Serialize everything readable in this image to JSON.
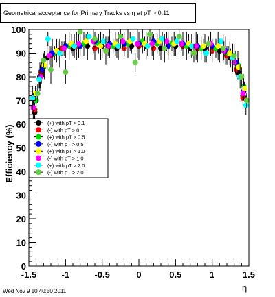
{
  "chart_data": {
    "type": "scatter",
    "title": "Geometrical acceptance for Primary Tracks vs   η at pT > 0.11",
    "xlabel": "η",
    "ylabel": "Efficiency (%)",
    "xlim": [
      -1.5,
      1.5
    ],
    "ylim": [
      0,
      100
    ],
    "xticks": [
      "-1.5",
      "-1",
      "-0.5",
      "0",
      "0.5",
      "1",
      "1.5"
    ],
    "yticks": [
      "0",
      "10",
      "20",
      "30",
      "40",
      "50",
      "60",
      "70",
      "80",
      "90",
      "100"
    ],
    "grid": false,
    "legend_position": "left-middle",
    "series": [
      {
        "name": "(+) with pT > 0.1",
        "color": "#000000",
        "points": [
          [
            -1.42,
            65
          ],
          [
            -1.35,
            80
          ],
          [
            -1.25,
            88
          ],
          [
            -1.1,
            91
          ],
          [
            -0.9,
            92
          ],
          [
            -0.7,
            93
          ],
          [
            -0.5,
            93
          ],
          [
            -0.3,
            92
          ],
          [
            -0.1,
            93
          ],
          [
            0.1,
            93
          ],
          [
            0.3,
            92
          ],
          [
            0.5,
            93
          ],
          [
            0.7,
            92
          ],
          [
            0.9,
            92
          ],
          [
            1.1,
            91
          ],
          [
            1.25,
            88
          ],
          [
            1.35,
            82
          ],
          [
            1.42,
            72
          ]
        ]
      },
      {
        "name": "(-) with pT > 0.1",
        "color": "#ff0000",
        "points": [
          [
            -1.42,
            66
          ],
          [
            -1.33,
            82
          ],
          [
            -1.2,
            89
          ],
          [
            -1.05,
            92
          ],
          [
            -0.85,
            93
          ],
          [
            -0.6,
            92
          ],
          [
            -0.4,
            93
          ],
          [
            -0.2,
            92
          ],
          [
            0.0,
            93
          ],
          [
            0.2,
            92
          ],
          [
            0.4,
            93
          ],
          [
            0.6,
            93
          ],
          [
            0.8,
            92
          ],
          [
            1.0,
            91
          ],
          [
            1.2,
            89
          ],
          [
            1.33,
            83
          ],
          [
            1.42,
            71
          ]
        ]
      },
      {
        "name": "(+) with pT > 0.5",
        "color": "#00dd00",
        "points": [
          [
            -1.4,
            70
          ],
          [
            -1.3,
            84
          ],
          [
            -1.15,
            90
          ],
          [
            -0.95,
            93
          ],
          [
            -0.75,
            94
          ],
          [
            -0.55,
            94
          ],
          [
            -0.35,
            93
          ],
          [
            -0.15,
            94
          ],
          [
            0.05,
            95
          ],
          [
            0.25,
            94
          ],
          [
            0.45,
            94
          ],
          [
            0.65,
            93
          ],
          [
            0.85,
            92
          ],
          [
            1.05,
            92
          ],
          [
            1.22,
            90
          ],
          [
            1.35,
            85
          ],
          [
            1.43,
            76
          ]
        ]
      },
      {
        "name": "(-) with pT > 0.5",
        "color": "#0000ff",
        "points": [
          [
            -1.43,
            72
          ],
          [
            -1.32,
            83
          ],
          [
            -1.18,
            90
          ],
          [
            -1.0,
            93
          ],
          [
            -0.8,
            93
          ],
          [
            -0.6,
            95
          ],
          [
            -0.4,
            94
          ],
          [
            -0.2,
            94
          ],
          [
            0.0,
            94
          ],
          [
            0.2,
            95
          ],
          [
            0.4,
            93
          ],
          [
            0.6,
            94
          ],
          [
            0.8,
            93
          ],
          [
            1.0,
            93
          ],
          [
            1.18,
            91
          ],
          [
            1.32,
            86
          ],
          [
            1.43,
            74
          ]
        ]
      },
      {
        "name": "(+) with pT > 1.0",
        "color": "#ffff00",
        "points": [
          [
            -1.41,
            73
          ],
          [
            -1.29,
            85
          ],
          [
            -1.12,
            91
          ],
          [
            -0.92,
            94
          ],
          [
            -0.72,
            95
          ],
          [
            -0.52,
            93
          ],
          [
            -0.32,
            94
          ],
          [
            -0.12,
            95
          ],
          [
            0.08,
            94
          ],
          [
            0.28,
            95
          ],
          [
            0.48,
            94
          ],
          [
            0.68,
            94
          ],
          [
            0.88,
            93
          ],
          [
            1.08,
            93
          ],
          [
            1.24,
            90
          ],
          [
            1.36,
            84
          ],
          [
            1.44,
            75
          ]
        ]
      },
      {
        "name": "(-) with pT > 1.0",
        "color": "#ff00ff",
        "points": [
          [
            -1.44,
            67
          ],
          [
            -1.34,
            80
          ],
          [
            -1.22,
            89
          ],
          [
            -1.02,
            92
          ],
          [
            -0.82,
            94
          ],
          [
            -0.62,
            95
          ],
          [
            -0.42,
            93
          ],
          [
            -0.22,
            95
          ],
          [
            -0.02,
            94
          ],
          [
            0.18,
            94
          ],
          [
            0.38,
            95
          ],
          [
            0.58,
            94
          ],
          [
            0.78,
            93
          ],
          [
            0.98,
            94
          ],
          [
            1.16,
            91
          ],
          [
            1.3,
            86
          ],
          [
            1.42,
            73
          ]
        ]
      },
      {
        "name": "(+) with pT > 2.0",
        "color": "#00ffff",
        "points": [
          [
            -1.45,
            71
          ],
          [
            -1.36,
            79
          ],
          [
            -1.24,
            96
          ],
          [
            -1.08,
            90
          ],
          [
            -0.88,
            93
          ],
          [
            -0.68,
            97
          ],
          [
            -0.48,
            95
          ],
          [
            -0.28,
            93
          ],
          [
            -0.08,
            96
          ],
          [
            0.12,
            93
          ],
          [
            0.32,
            96
          ],
          [
            0.52,
            95
          ],
          [
            0.72,
            93
          ],
          [
            0.92,
            90
          ],
          [
            1.12,
            95
          ],
          [
            1.28,
            88
          ],
          [
            1.38,
            80
          ],
          [
            1.46,
            68
          ]
        ]
      },
      {
        "name": "(-) with pT > 2.0",
        "color": "#66cc44",
        "points": [
          [
            -1.38,
            73
          ],
          [
            -1.3,
            87
          ],
          [
            -1.2,
            83
          ],
          [
            -1.0,
            82
          ],
          [
            -0.8,
            99
          ],
          [
            -0.6,
            96
          ],
          [
            -0.45,
            91
          ],
          [
            -0.25,
            97
          ],
          [
            -0.05,
            86
          ],
          [
            0.15,
            98
          ],
          [
            0.35,
            92
          ],
          [
            0.55,
            97
          ],
          [
            0.75,
            90
          ],
          [
            0.95,
            94
          ],
          [
            1.15,
            92
          ],
          [
            1.3,
            89
          ],
          [
            1.4,
            80
          ],
          [
            1.47,
            70
          ]
        ]
      }
    ]
  },
  "footer": {
    "timestamp": "Wed Nov  9 10:40:50 2011"
  }
}
